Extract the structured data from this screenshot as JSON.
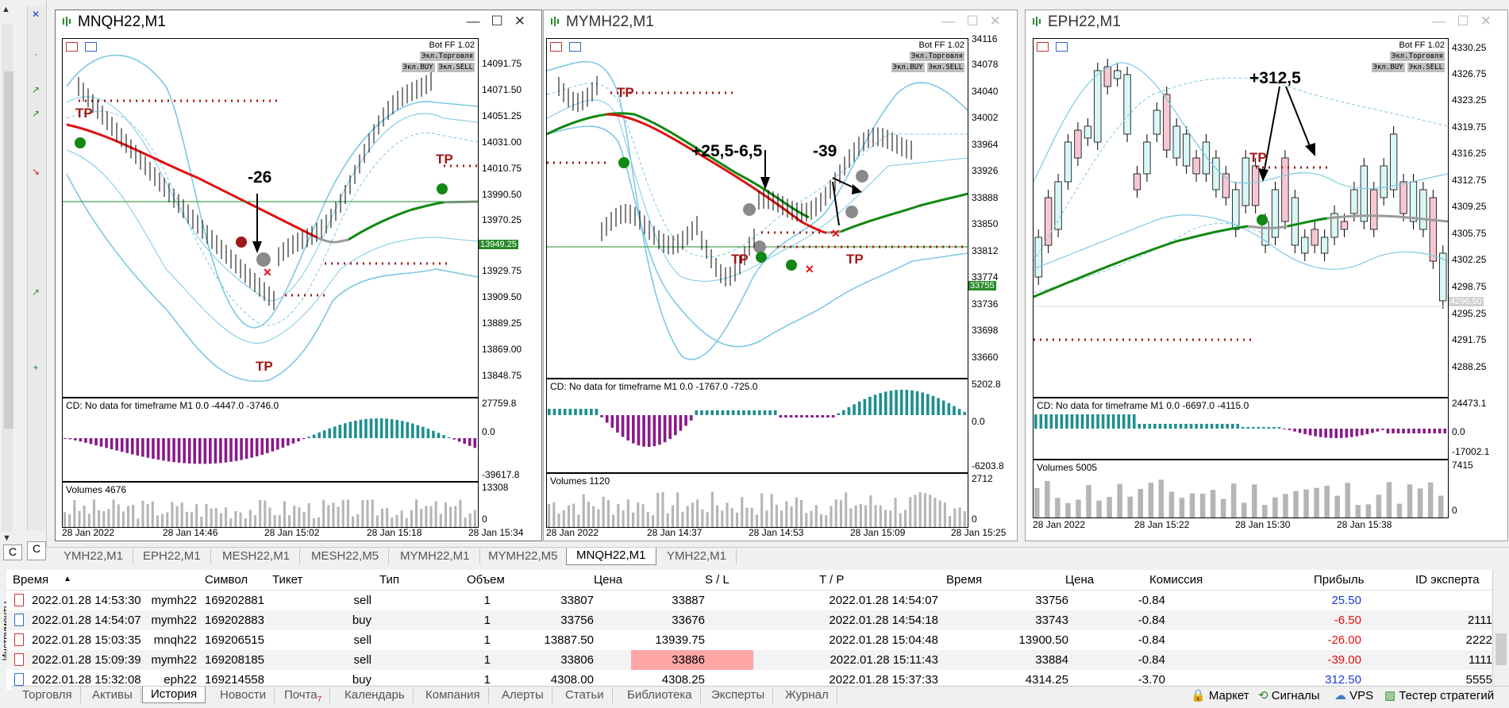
{
  "left_panel": {
    "tabs": [
      "C",
      "C"
    ]
  },
  "windows": [
    {
      "title": "MNQH22,M1",
      "bot": {
        "name": "Bot FF 1.02",
        "mode_button": "Экл.Торговля",
        "buy_button": "Экл.BUY",
        "sell_button": "Экл.SELL"
      },
      "price_labels": [
        "14091.75",
        "14071.50",
        "14051.25",
        "14031.00",
        "14010.75",
        "13990.50",
        "13970.25",
        "13949.25",
        "13929.75",
        "13909.50",
        "13889.25",
        "13869.00",
        "13848.75"
      ],
      "current_price": "13949.25",
      "indicator_label": "CD: No data for timeframe M1 0.0 -4447.0 -3746.0",
      "indicator_scale": [
        "27759.8",
        "0.0",
        "-39617.8"
      ],
      "volume_label": "Volumes 4676",
      "volume_scale": [
        "13308",
        "0"
      ],
      "time_labels": [
        "28 Jan 2022",
        "28 Jan 14:46",
        "28 Jan 15:02",
        "28 Jan 15:18",
        "28 Jan 15:34"
      ],
      "annotations": [
        "-26"
      ],
      "tp_label": "TP"
    },
    {
      "title": "MYMH22,M1",
      "bot": {
        "name": "Bot FF 1.02",
        "mode_button": "Экл.Торговля",
        "buy_button": "Экл.BUY",
        "sell_button": "Экл.SELL"
      },
      "price_labels": [
        "34116",
        "34078",
        "34040",
        "34002",
        "33964",
        "33926",
        "33888",
        "33850",
        "33812",
        "33774",
        "33755",
        "33736",
        "33698",
        "33660"
      ],
      "current_price": "33755",
      "indicator_label": "CD: No data for timeframe M1 0.0 -1767.0 -725.0",
      "indicator_scale": [
        "5202.8",
        "0.0",
        "-6203.8"
      ],
      "volume_label": "Volumes 1120",
      "volume_scale": [
        "2712",
        "0"
      ],
      "time_labels": [
        "28 Jan 2022",
        "28 Jan 14:37",
        "28 Jan 14:53",
        "28 Jan 15:09",
        "28 Jan 15:25"
      ],
      "annotations": [
        "+25,5-6,5",
        "-39"
      ],
      "tp_label": "TP"
    },
    {
      "title": "EPH22,M1",
      "bot": {
        "name": "Bot FF 1.02",
        "mode_button": "Экл.Торговля",
        "buy_button": "Экл.BUY",
        "sell_button": "Экл.SELL"
      },
      "price_labels": [
        "4330.25",
        "4326.75",
        "4323.25",
        "4319.75",
        "4316.25",
        "4312.75",
        "4309.25",
        "4305.75",
        "4302.25",
        "4298.75",
        "4296.50",
        "4295.25",
        "4291.75",
        "4288.25"
      ],
      "current_price": "4296.50",
      "indicator_label": "CD: No data for timeframe M1 0.0 -6697.0 -4115.0",
      "indicator_scale": [
        "24473.1",
        "0.0",
        "-17002.1"
      ],
      "volume_label": "Volumes 5005",
      "volume_scale": [
        "7415",
        "0"
      ],
      "time_labels": [
        "28 Jan 2022",
        "28 Jan 15:22",
        "28 Jan 15:30",
        "28 Jan 15:38"
      ],
      "annotations": [
        "+312,5"
      ],
      "tp_label": "TP"
    }
  ],
  "chart_tabs": [
    "YMH22,M1",
    "EPH22,M1",
    "MESH22,M1",
    "MESH22,M5",
    "MYMH22,M1",
    "MYMH22,M5",
    "MNQH22,M1",
    "YMH22,M1"
  ],
  "active_chart_tab": 6,
  "table": {
    "columns": [
      "Время",
      "Символ",
      "Тикет",
      "Тип",
      "Объем",
      "Цена",
      "S / L",
      "T / P",
      "Время",
      "Цена",
      "Комиссия",
      "Прибыль",
      "ID эксперта"
    ],
    "rows": [
      [
        "2022.01.28 14:53:30",
        "mymh22",
        "169202881",
        "sell",
        "1",
        "33807",
        "33887",
        "",
        "2022.01.28 14:54:07",
        "33756",
        "-0.84",
        "25.50",
        ""
      ],
      [
        "2022.01.28 14:54:07",
        "mymh22",
        "169202883",
        "buy",
        "1",
        "33756",
        "33676",
        "",
        "2022.01.28 14:54:18",
        "33743",
        "-0.84",
        "-6.50",
        "2111"
      ],
      [
        "2022.01.28 15:03:35",
        "mnqh22",
        "169206515",
        "sell",
        "1",
        "13887.50",
        "13939.75",
        "",
        "2022.01.28 15:04:48",
        "13900.50",
        "-0.84",
        "-26.00",
        "2222"
      ],
      [
        "2022.01.28 15:09:39",
        "mymh22",
        "169208185",
        "sell",
        "1",
        "33806",
        "33886",
        "",
        "2022.01.28 15:11:43",
        "33884",
        "-0.84",
        "-39.00",
        "1111"
      ],
      [
        "2022.01.28 15:32:08",
        "eph22",
        "169214558",
        "buy",
        "1",
        "4308.00",
        "4308.25",
        "",
        "2022.01.28 15:37:33",
        "4314.25",
        "-3.70",
        "312.50",
        "5555"
      ]
    ]
  },
  "side_label": "Инструменты",
  "bottom_tabs": [
    "Торговля",
    "Активы",
    "История",
    "Новости",
    "Почта",
    "Календарь",
    "Компания",
    "Алерты",
    "Статьи",
    "Библиотека",
    "Эксперты",
    "Журнал"
  ],
  "mail_badge": "7",
  "active_bottom_tab": 2,
  "right_tabs": [
    "Маркет",
    "Сигналы",
    "VPS",
    "Тестер стратегий"
  ],
  "colors": {
    "bull_candle": "#d9f7f7",
    "bear_candle": "#f7c8d3",
    "ma_red": "#e01010",
    "ma_green": "#118811",
    "bands": "#7ec8e3",
    "tp": "#a01818",
    "hist_green": "#1f8f8f",
    "hist_purple": "#8a1a8a",
    "volume": "#b5b5b5",
    "profit_pos": "#1a3cd6",
    "profit_neg": "#e01010",
    "sl_highlight": "#ffa6a6"
  }
}
